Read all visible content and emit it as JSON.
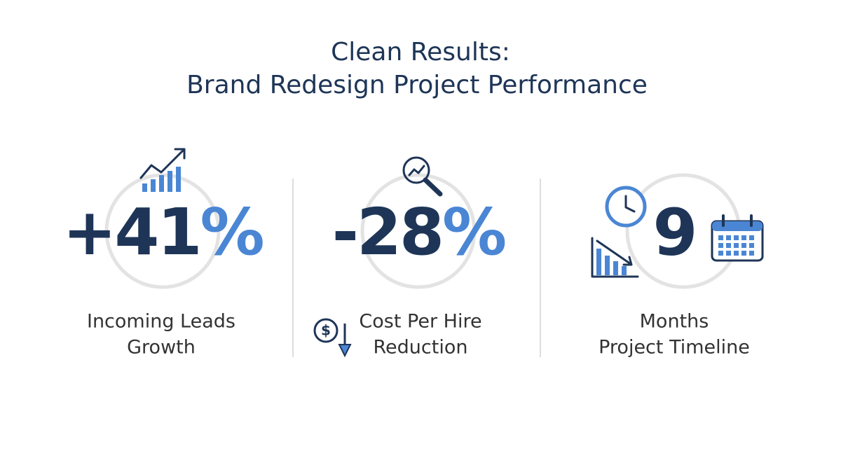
{
  "header": {
    "title_lines": [
      "Clean Results:",
      "Brand Redesign Project Performance"
    ]
  },
  "stats": [
    {
      "value": "+41",
      "unit": "%",
      "label_lines": [
        "Incoming Leads",
        "Growth"
      ]
    },
    {
      "value": "-28",
      "unit": "%",
      "label_lines": [
        "Cost Per Hire",
        "Reduction"
      ]
    },
    {
      "value": "9",
      "label_lines": [
        "Months",
        "Project Timeline"
      ]
    }
  ]
}
